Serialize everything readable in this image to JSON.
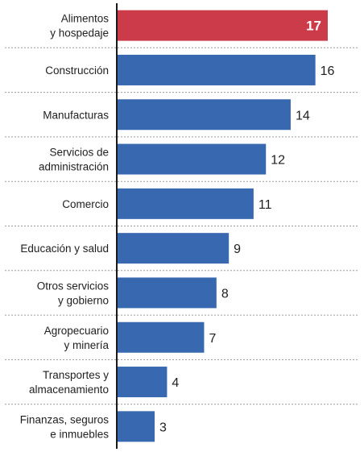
{
  "chart_data": {
    "type": "bar",
    "orientation": "horizontal",
    "categories": [
      [
        "Alimentos",
        "y hospedaje"
      ],
      [
        "Construcción"
      ],
      [
        "Manufacturas"
      ],
      [
        "Servicios de",
        "administración"
      ],
      [
        "Comercio"
      ],
      [
        "Educación y salud"
      ],
      [
        "Otros servicios",
        "y gobierno"
      ],
      [
        "Agropecuario",
        "y minería"
      ],
      [
        "Transportes y",
        "almacenamiento"
      ],
      [
        "Finanzas, seguros",
        "e inmuebles"
      ]
    ],
    "values": [
      17,
      16,
      14,
      12,
      11,
      9,
      8,
      7,
      4,
      3
    ],
    "colors": [
      "#cc3b4a",
      "#3768b0",
      "#3768b0",
      "#3768b0",
      "#3768b0",
      "#3768b0",
      "#3768b0",
      "#3768b0",
      "#3768b0",
      "#3768b0"
    ],
    "xlim": [
      0,
      17.8
    ],
    "grid": "horizontal dashed separators",
    "legend": "none"
  }
}
